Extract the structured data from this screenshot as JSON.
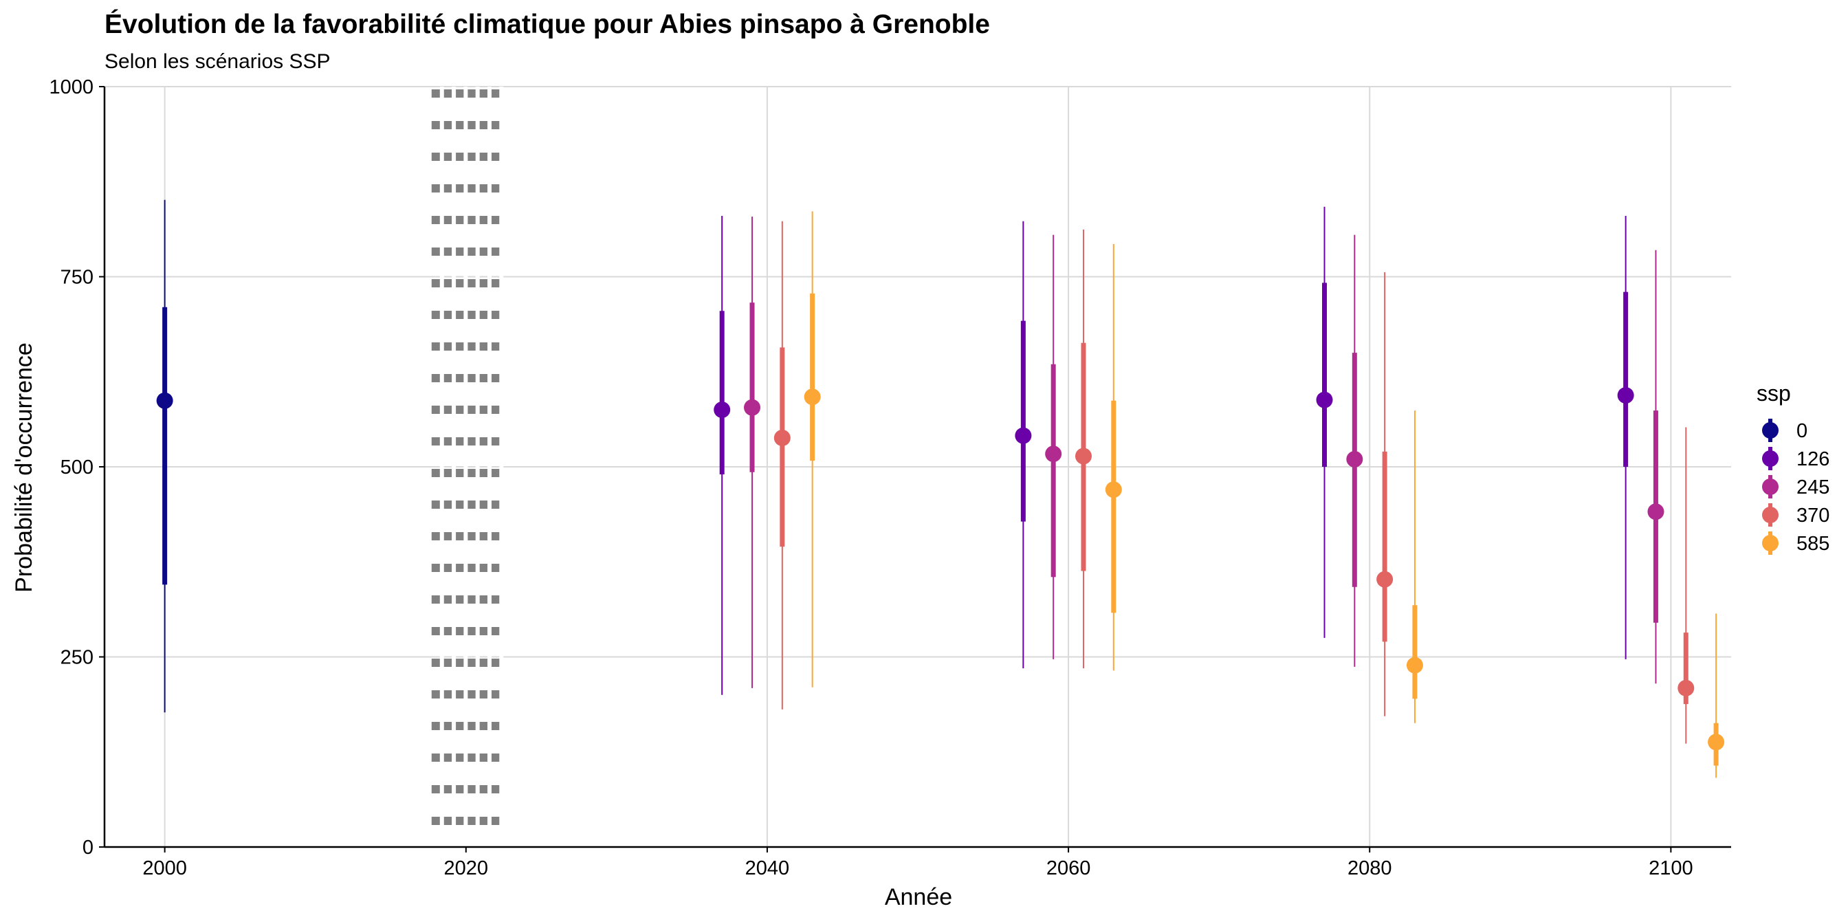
{
  "chart_data": {
    "type": "pointrange",
    "title": "Évolution de la favorabilité climatique pour Abies pinsapo à Grenoble",
    "subtitle": "Selon les scénarios SSP",
    "xlabel": "Année",
    "ylabel": "Probabilité d'occurrence",
    "xlim": [
      1996,
      2104
    ],
    "ylim": [
      0,
      1000
    ],
    "x_ticks": [
      2000,
      2020,
      2040,
      2060,
      2080,
      2100
    ],
    "y_ticks": [
      0,
      250,
      500,
      750,
      1000
    ],
    "grid": "major",
    "reference_line": {
      "x": 2020,
      "style": "dotted",
      "color": "#808080"
    },
    "legend": {
      "title": "ssp",
      "position": "right"
    },
    "series": [
      {
        "name": "0",
        "color": "#0D0887",
        "points": [
          {
            "x": 2000,
            "y": 587,
            "inner": [
              345,
              710
            ],
            "outer": [
              177,
              851
            ]
          }
        ]
      },
      {
        "name": "126",
        "color": "#6A00A8",
        "points": [
          {
            "x": 2037,
            "y": 575,
            "inner": [
              490,
              705
            ],
            "outer": [
              200,
              830
            ]
          },
          {
            "x": 2057,
            "y": 541,
            "inner": [
              428,
              692
            ],
            "outer": [
              235,
              823
            ]
          },
          {
            "x": 2077,
            "y": 588,
            "inner": [
              500,
              742
            ],
            "outer": [
              275,
              842
            ]
          },
          {
            "x": 2097,
            "y": 594,
            "inner": [
              500,
              730
            ],
            "outer": [
              247,
              830
            ]
          }
        ]
      },
      {
        "name": "245",
        "color": "#B12A90",
        "points": [
          {
            "x": 2039,
            "y": 578,
            "inner": [
              493,
              716
            ],
            "outer": [
              209,
              829
            ]
          },
          {
            "x": 2059,
            "y": 517,
            "inner": [
              355,
              635
            ],
            "outer": [
              247,
              805
            ]
          },
          {
            "x": 2079,
            "y": 510,
            "inner": [
              342,
              650
            ],
            "outer": [
              237,
              805
            ]
          },
          {
            "x": 2099,
            "y": 441,
            "inner": [
              295,
              574
            ],
            "outer": [
              215,
              785
            ]
          }
        ]
      },
      {
        "name": "370",
        "color": "#E16462",
        "points": [
          {
            "x": 2041,
            "y": 538,
            "inner": [
              395,
              657
            ],
            "outer": [
              181,
              823
            ]
          },
          {
            "x": 2061,
            "y": 514,
            "inner": [
              363,
              663
            ],
            "outer": [
              235,
              812
            ]
          },
          {
            "x": 2081,
            "y": 352,
            "inner": [
              270,
              520
            ],
            "outer": [
              172,
              756
            ]
          },
          {
            "x": 2101,
            "y": 209,
            "inner": [
              188,
              282
            ],
            "outer": [
              136,
              552
            ]
          }
        ]
      },
      {
        "name": "585",
        "color": "#FCA636",
        "points": [
          {
            "x": 2043,
            "y": 592,
            "inner": [
              508,
              728
            ],
            "outer": [
              210,
              836
            ]
          },
          {
            "x": 2063,
            "y": 470,
            "inner": [
              308,
              587
            ],
            "outer": [
              232,
              793
            ]
          },
          {
            "x": 2083,
            "y": 239,
            "inner": [
              195,
              318
            ],
            "outer": [
              163,
              574
            ]
          },
          {
            "x": 2103,
            "y": 138,
            "inner": [
              107,
              163
            ],
            "outer": [
              91,
              307
            ]
          }
        ]
      }
    ]
  }
}
